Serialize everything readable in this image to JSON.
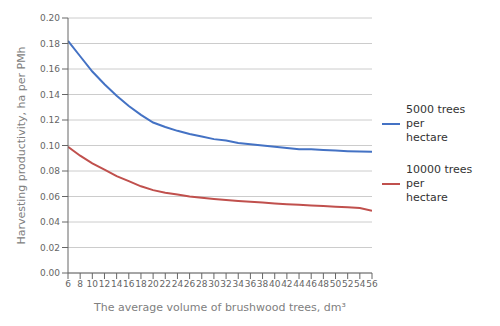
{
  "chart_data": {
    "type": "line",
    "x_label": "The average volume of brushwood trees, dm³",
    "y_label": "Harvesting productivity, ha per PMh",
    "x": [
      6,
      8,
      10,
      12,
      14,
      16,
      18,
      20,
      22,
      24,
      26,
      28,
      30,
      32,
      34,
      36,
      38,
      40,
      42,
      44,
      46,
      48,
      50,
      52,
      54,
      56
    ],
    "series": [
      {
        "name": "5000 trees per\nhectare",
        "color": "#4472C4",
        "values": [
          0.182,
          0.17,
          0.158,
          0.148,
          0.139,
          0.131,
          0.124,
          0.118,
          0.1145,
          0.1115,
          0.109,
          0.107,
          0.105,
          0.104,
          0.102,
          0.101,
          0.1,
          0.099,
          0.098,
          0.097,
          0.097,
          0.0965,
          0.096,
          0.0955,
          0.0952,
          0.095
        ]
      },
      {
        "name": "10000 trees per\nhectare",
        "color": "#C0504D",
        "values": [
          0.099,
          0.092,
          0.086,
          0.081,
          0.076,
          0.072,
          0.068,
          0.065,
          0.063,
          0.0615,
          0.06,
          0.059,
          0.058,
          0.0572,
          0.0565,
          0.0558,
          0.0552,
          0.0546,
          0.054,
          0.0535,
          0.053,
          0.0525,
          0.052,
          0.0515,
          0.051,
          0.0488
        ]
      }
    ],
    "xlim": [
      6,
      56
    ],
    "xticks": [
      6,
      8,
      10,
      12,
      14,
      16,
      18,
      20,
      22,
      24,
      26,
      28,
      30,
      32,
      34,
      36,
      38,
      40,
      42,
      44,
      46,
      48,
      50,
      52,
      54,
      56
    ],
    "ylim": [
      0.0,
      0.2
    ],
    "yticks": [
      {
        "value": 0.0,
        "label": "0.00"
      },
      {
        "value": 0.02,
        "label": "0.02"
      },
      {
        "value": 0.04,
        "label": "0.04"
      },
      {
        "value": 0.06,
        "label": "0.06"
      },
      {
        "value": 0.08,
        "label": "0.08"
      },
      {
        "value": 0.1,
        "label": "0.10"
      },
      {
        "value": 0.12,
        "label": "0.12"
      },
      {
        "value": 0.14,
        "label": "0.14"
      },
      {
        "value": 0.16,
        "label": "0.16"
      },
      {
        "value": 0.18,
        "label": "0.18"
      },
      {
        "value": 0.2,
        "label": "0.20"
      }
    ],
    "grid": true,
    "legend": "right"
  }
}
